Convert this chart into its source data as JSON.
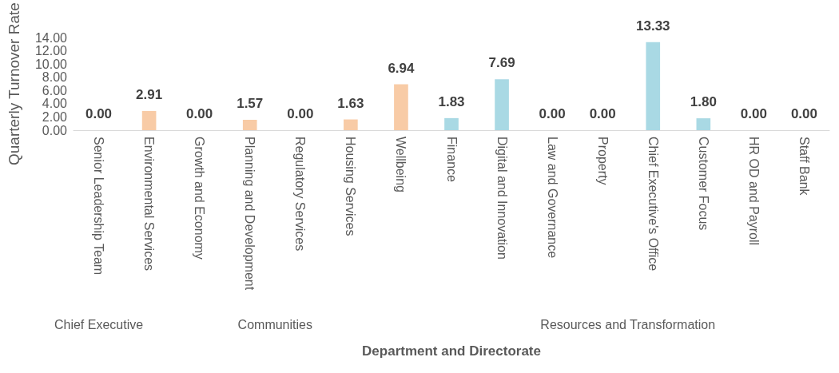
{
  "chart_data": {
    "type": "bar",
    "xlabel": "Department and Directorate",
    "ylabel": "Quarterly Turnover Rate",
    "categories": [
      "Senior Leadership Team",
      "Environmental Services",
      "Growth and Economy",
      "Planning and Development",
      "Regulatory Services",
      "Housing Services",
      "Wellbeing",
      "Finance",
      "Digital and Innovation",
      "Law and Governance",
      "Property",
      "Chief Executive's Office",
      "Customer Focus",
      "HR OD and Payroll",
      "Staff Bank"
    ],
    "values": [
      0,
      2.91,
      0,
      1.57,
      0,
      1.63,
      6.94,
      1.83,
      7.69,
      0,
      0,
      13.33,
      1.8,
      0,
      0
    ],
    "value_labels": [
      "0.00",
      "2.91",
      "0.00",
      "1.57",
      "0.00",
      "1.63",
      "6.94",
      "1.83",
      "7.69",
      "0.00",
      "0.00",
      "13.33",
      "1.80",
      "0.00",
      "0.00"
    ],
    "colors": [
      "#d9d9d9",
      "#f8cba6",
      "#f8cba6",
      "#f8cba6",
      "#f8cba6",
      "#f8cba6",
      "#f8cba6",
      "#a9d9e4",
      "#a9d9e4",
      "#a9d9e4",
      "#a9d9e4",
      "#a9d9e4",
      "#a9d9e4",
      "#a9d9e4",
      "#a9d9e4"
    ],
    "ylim": [
      0,
      14
    ],
    "yticks": [
      {
        "value": 0,
        "label": "0.00"
      },
      {
        "value": 2,
        "label": "2.00"
      },
      {
        "value": 4,
        "label": "4.00"
      },
      {
        "value": 6,
        "label": "6.00"
      },
      {
        "value": 8,
        "label": "8.00"
      },
      {
        "value": 10,
        "label": "10.00"
      },
      {
        "value": 12,
        "label": "12.00"
      },
      {
        "value": 14,
        "label": "14.00"
      }
    ],
    "annotations": [
      "Chief Executive",
      "Communities",
      "Resources and Transformation"
    ],
    "grid": false
  }
}
